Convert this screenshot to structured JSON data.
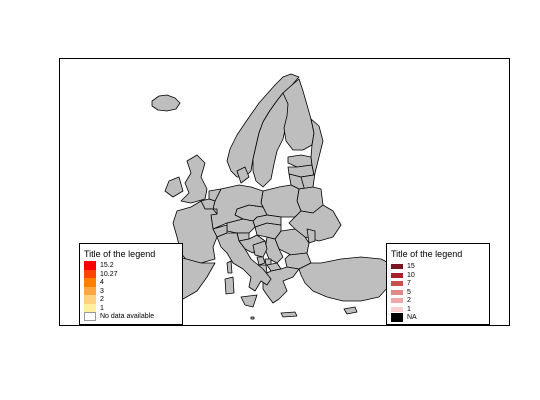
{
  "map": {
    "land_color": "#bebebe",
    "border_color": "#000000",
    "background_color": "#ffffff",
    "regions": [
      "iceland",
      "norway",
      "sweden",
      "finland",
      "russia",
      "estonia",
      "latvia",
      "lithuania",
      "belarus",
      "poland",
      "ukraine",
      "moldova",
      "romania",
      "bulgaria",
      "serbia",
      "bosnia",
      "croatia",
      "slovenia",
      "hungary",
      "slovakia",
      "czechia",
      "austria",
      "switzerland",
      "germany",
      "denmark",
      "netherlands",
      "belgium",
      "luxembourg",
      "france",
      "spain",
      "portugal",
      "italy",
      "sardinia",
      "corsica",
      "sicily",
      "uk",
      "ireland",
      "greece",
      "crete",
      "turkey",
      "cyprus",
      "albania",
      "north-macedonia",
      "montenegro",
      "kosovo",
      "malta"
    ]
  },
  "legend_left": {
    "title": "Title of the legend",
    "entries": [
      {
        "label": "15.2",
        "color": "#ff0000"
      },
      {
        "label": "10.27",
        "color": "#ff4500"
      },
      {
        "label": "4",
        "color": "#ff7f00"
      },
      {
        "label": "3",
        "color": "#ffa740"
      },
      {
        "label": "2",
        "color": "#ffd27f"
      },
      {
        "label": "1",
        "color": "#fff0a0"
      },
      {
        "label": "No data available",
        "color": "#ffffff"
      }
    ]
  },
  "legend_right": {
    "title": "Title of the legend",
    "entries": [
      {
        "label": "15",
        "color": "#7a1420"
      },
      {
        "label": "10",
        "color": "#a8202c"
      },
      {
        "label": "7",
        "color": "#c8504e"
      },
      {
        "label": "5",
        "color": "#e08888"
      },
      {
        "label": "2",
        "color": "#f0a8a8"
      },
      {
        "label": "1",
        "color": "#f8d0d0"
      },
      {
        "label": "NA",
        "color": "#000000"
      }
    ]
  }
}
